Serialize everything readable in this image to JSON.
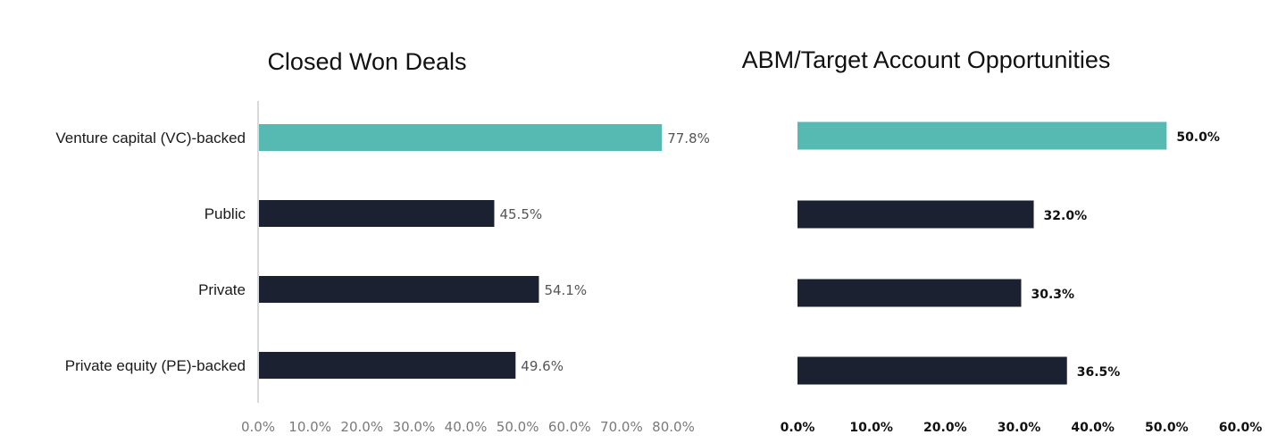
{
  "colors": {
    "highlight": "#56b9b2",
    "bar": "#1c2132"
  },
  "chart_data": [
    {
      "type": "bar",
      "orientation": "horizontal",
      "title": "Closed Won Deals",
      "categories": [
        "Venture capital (VC)-backed",
        "Public",
        "Private",
        "Private equity (PE)-backed"
      ],
      "values": [
        77.8,
        45.5,
        54.1,
        49.6
      ],
      "value_labels": [
        "77.8%",
        "45.5%",
        "54.1%",
        "49.6%"
      ],
      "highlight_index": 0,
      "xlim": [
        0,
        80
      ],
      "xticks": [
        0,
        10,
        20,
        30,
        40,
        50,
        60,
        70,
        80
      ],
      "xtick_labels": [
        "0.0%",
        "10.0%",
        "20.0%",
        "30.0%",
        "40.0%",
        "50.0%",
        "60.0%",
        "70.0%",
        "80.0%"
      ],
      "grid": false
    },
    {
      "type": "bar",
      "orientation": "horizontal",
      "title": "ABM/Target Account Opportunities",
      "categories": [
        "Venture capital (VC)-backed",
        "Public",
        "Private",
        "Private equity (PE)-backed"
      ],
      "values": [
        50.0,
        32.0,
        30.3,
        36.5
      ],
      "value_labels": [
        "50.0%",
        "32.0%",
        "30.3%",
        "36.5%"
      ],
      "highlight_index": 0,
      "xlim": [
        0,
        60
      ],
      "xticks": [
        0,
        10,
        20,
        30,
        40,
        50,
        60
      ],
      "xtick_labels": [
        "0.0%",
        "10.0%",
        "20.0%",
        "30.0%",
        "40.0%",
        "50.0%",
        "60.0%"
      ],
      "grid": false
    }
  ]
}
